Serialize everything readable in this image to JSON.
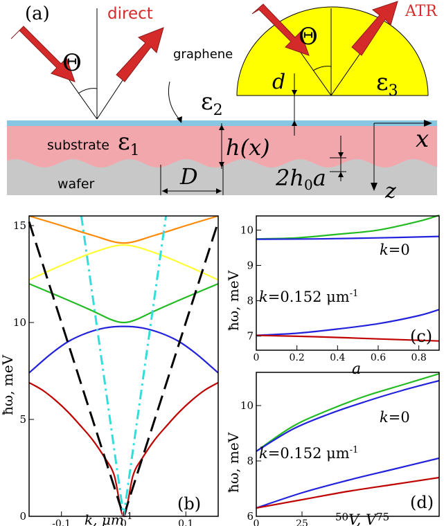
{
  "colors": {
    "arrow": "#d42a2a",
    "graphene": "#87c6e0",
    "substrate": "#f2a7ad",
    "wafer": "#c8c8c8",
    "prism": "#ffff00",
    "red": "#c00000",
    "blue": "#2222dd",
    "green": "#22bb22",
    "yellow": "#ffff33",
    "orange": "#ff8800",
    "cyan": "#33dddd"
  },
  "panel_a": {
    "label": "(a)",
    "direct": "direct",
    "atr": "ATR",
    "theta": "Θ",
    "graphene": "graphene",
    "eps1": "ε",
    "eps1_sub": "1",
    "eps2": "ε",
    "eps2_sub": "2",
    "eps3": "ε",
    "eps3_sub": "3",
    "substrate": "substrate",
    "wafer": "wafer",
    "d": "d",
    "hx": "h(x)",
    "D": "D",
    "amp": "2h",
    "amp_sub": "0",
    "amp_a": "a",
    "x": "x",
    "z": "z"
  },
  "chart_data": [
    {
      "id": "b",
      "type": "line",
      "panel_label": "(b)",
      "xlabel": "k, μm",
      "xlabel_sup": "-1",
      "ylabel": "ħω, meV",
      "xlim": [
        -0.152,
        0.152
      ],
      "ylim": [
        0,
        15.5
      ],
      "xticks": [
        -0.1,
        0,
        0.1
      ],
      "xtick_labels": [
        "-0.1",
        "0",
        "0.1"
      ],
      "yticks": [
        0,
        5,
        10,
        15
      ],
      "series": [
        {
          "color": "red",
          "style": "solid",
          "x": [
            -0.152,
            -0.13,
            -0.11,
            -0.09,
            -0.07,
            -0.05,
            -0.03,
            -0.015,
            0,
            0.015,
            0.03,
            0.05,
            0.07,
            0.09,
            0.11,
            0.13,
            0.152
          ],
          "y": [
            6.9,
            6.5,
            6.0,
            5.4,
            4.7,
            3.95,
            3.0,
            2.1,
            0,
            2.1,
            3.0,
            3.95,
            4.7,
            5.4,
            6.0,
            6.5,
            6.9
          ]
        },
        {
          "color": "blue",
          "style": "solid",
          "x": [
            -0.152,
            -0.12,
            -0.09,
            -0.06,
            -0.03,
            0,
            0.03,
            0.06,
            0.09,
            0.12,
            0.152
          ],
          "y": [
            7.4,
            8.3,
            9.0,
            9.45,
            9.72,
            9.8,
            9.72,
            9.45,
            9.0,
            8.3,
            7.4
          ]
        },
        {
          "color": "green",
          "style": "solid",
          "x": [
            -0.152,
            -0.1,
            -0.05,
            -0.02,
            0,
            0.02,
            0.05,
            0.1,
            0.152
          ],
          "y": [
            12.0,
            11.3,
            10.6,
            10.15,
            10.0,
            10.15,
            10.6,
            11.3,
            12.0
          ]
        },
        {
          "color": "yellow",
          "style": "solid",
          "x": [
            -0.152,
            -0.1,
            -0.05,
            0,
            0.05,
            0.1,
            0.152
          ],
          "y": [
            12.2,
            12.95,
            13.6,
            14.0,
            13.6,
            12.95,
            12.2
          ]
        },
        {
          "color": "orange",
          "style": "solid",
          "x": [
            -0.152,
            -0.1,
            -0.05,
            0,
            0.05,
            0.1,
            0.152
          ],
          "y": [
            15.5,
            15.0,
            14.5,
            14.1,
            14.5,
            15.0,
            15.5
          ]
        },
        {
          "color": "black",
          "style": "dash",
          "x": [
            -0.152,
            0,
            0.152
          ],
          "y": [
            15.2,
            0,
            15.2
          ]
        },
        {
          "color": "cyan",
          "style": "dashdot",
          "x": [
            -0.068,
            0,
            0.068
          ],
          "y": [
            15.5,
            0,
            15.5
          ]
        }
      ]
    },
    {
      "id": "c",
      "type": "line",
      "panel_label": "(c)",
      "xlabel": "a",
      "ylabel": "ħω, meV",
      "xlim": [
        0,
        0.9
      ],
      "ylim": [
        6.6,
        10.4
      ],
      "xticks": [
        0,
        0.2,
        0.4,
        0.6,
        0.8
      ],
      "xtick_labels": [
        "0",
        "0.2",
        "0.4",
        "0.6",
        "0.8"
      ],
      "yticks": [
        7,
        8,
        9,
        10
      ],
      "annotations": [
        {
          "text": "k",
          "suffix": "=0"
        },
        {
          "text": "k",
          "suffix": "=0.152 μm",
          "sup": "-1"
        }
      ],
      "series": [
        {
          "color": "green",
          "x": [
            0,
            0.2,
            0.4,
            0.6,
            0.8,
            0.9
          ],
          "y": [
            9.75,
            9.78,
            9.88,
            10.0,
            10.25,
            10.42
          ]
        },
        {
          "color": "blue",
          "x": [
            0,
            0.3,
            0.6,
            0.9
          ],
          "y": [
            9.74,
            9.75,
            9.78,
            9.82
          ]
        },
        {
          "color": "blue",
          "x": [
            0,
            0.2,
            0.4,
            0.6,
            0.8,
            0.9
          ],
          "y": [
            7.02,
            7.08,
            7.2,
            7.35,
            7.58,
            7.75
          ]
        },
        {
          "color": "red",
          "x": [
            0,
            0.3,
            0.6,
            0.9
          ],
          "y": [
            7.02,
            6.98,
            6.92,
            6.86
          ]
        }
      ]
    },
    {
      "id": "d",
      "type": "line",
      "panel_label": "(d)",
      "xlabel": "V, V",
      "xlabel_prefix": "50",
      "xlabel_suffix": "75",
      "ylabel": "ħω, meV",
      "xlim": [
        0,
        100
      ],
      "ylim": [
        6,
        11.2
      ],
      "xticks": [
        0,
        25
      ],
      "xtick_labels": [
        "0",
        "25"
      ],
      "yticks": [
        6,
        8,
        10
      ],
      "annotations": [
        {
          "text": "k",
          "suffix": "=0"
        },
        {
          "text": "k",
          "suffix": "=0.152 μm",
          "sup": "-1"
        }
      ],
      "series": [
        {
          "color": "green",
          "x": [
            0,
            20,
            40,
            60,
            80,
            100
          ],
          "y": [
            8.35,
            9.25,
            9.85,
            10.35,
            10.75,
            11.15
          ]
        },
        {
          "color": "blue",
          "x": [
            0,
            20,
            40,
            60,
            80,
            100
          ],
          "y": [
            8.35,
            9.15,
            9.7,
            10.15,
            10.55,
            10.9
          ]
        },
        {
          "color": "blue",
          "x": [
            0,
            25,
            50,
            75,
            100
          ],
          "y": [
            6.3,
            6.85,
            7.3,
            7.7,
            8.1
          ]
        },
        {
          "color": "red",
          "x": [
            0,
            25,
            50,
            75,
            100
          ],
          "y": [
            6.3,
            6.6,
            6.9,
            7.15,
            7.4
          ]
        }
      ]
    }
  ]
}
